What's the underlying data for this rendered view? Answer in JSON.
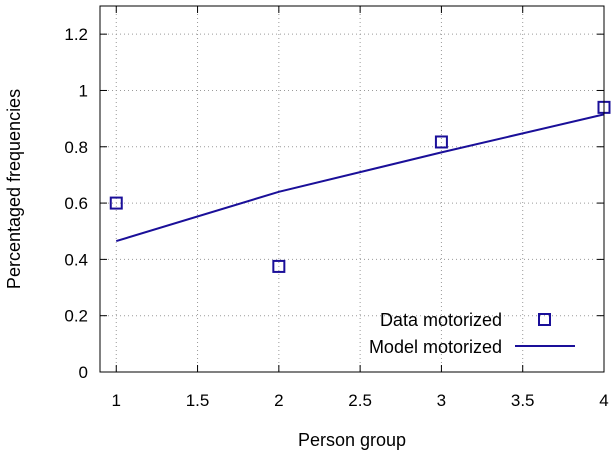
{
  "chart_data": {
    "type": "line",
    "title": "",
    "xlabel": "Person group",
    "ylabel": "Percentaged frequencies",
    "xlim": [
      0.9,
      4
    ],
    "ylim": [
      0,
      1.3
    ],
    "xticks": [
      1,
      1.5,
      2,
      2.5,
      3,
      3.5,
      4
    ],
    "xtick_labels": [
      "1",
      "1.5",
      "2",
      "2.5",
      "3",
      "3.5",
      "4"
    ],
    "yticks": [
      0,
      0.2,
      0.4,
      0.6,
      0.8,
      1,
      1.2
    ],
    "ytick_labels": [
      "0",
      "0.2",
      "0.4",
      "0.6",
      "0.8",
      "1",
      "1.2"
    ],
    "grid": true,
    "legend_position": "bottom-right",
    "series": [
      {
        "name": "Data motorized",
        "kind": "points",
        "marker": "open-square",
        "color": "#1a0f99",
        "x": [
          1,
          2,
          3,
          4
        ],
        "y": [
          0.6,
          0.375,
          0.817,
          0.94
        ]
      },
      {
        "name": "Model motorized",
        "kind": "line",
        "color": "#1a0f99",
        "x": [
          1,
          2,
          3,
          4
        ],
        "y": [
          0.465,
          0.64,
          0.78,
          0.915
        ]
      }
    ]
  }
}
